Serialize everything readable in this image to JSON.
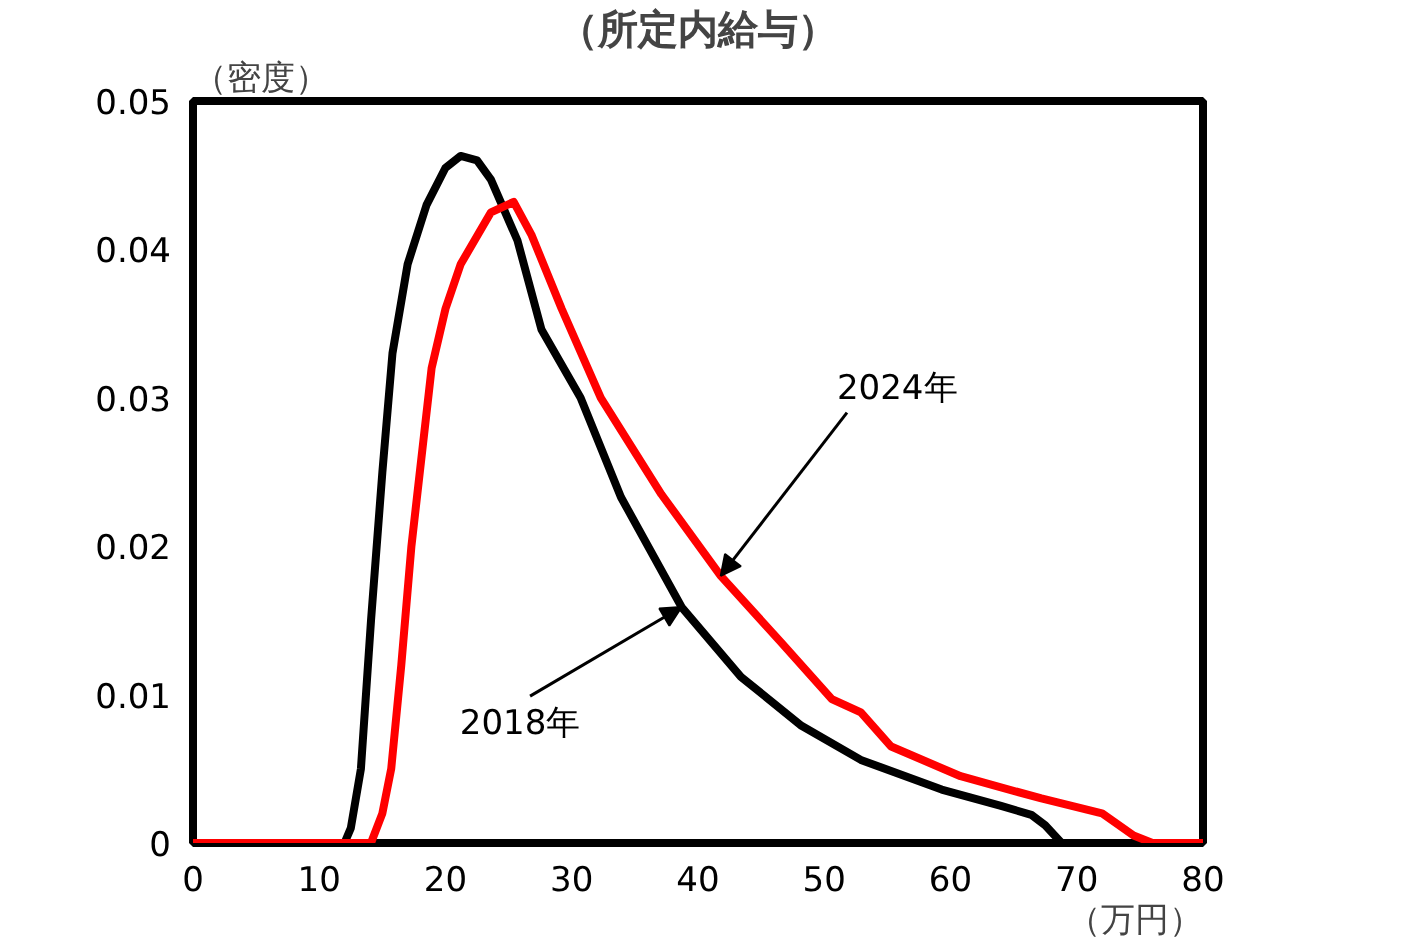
{
  "chart_data": {
    "type": "line",
    "title": "（所定内給与）",
    "ylabel": "（密度）",
    "xlabel": "（万円）",
    "xlim": [
      0,
      80
    ],
    "ylim": [
      0,
      0.05
    ],
    "xticks": [
      0,
      10,
      20,
      30,
      40,
      50,
      60,
      70,
      80
    ],
    "yticks": [
      0,
      {
        "value": 0.01,
        "label": "0.01"
      },
      {
        "value": 0.02,
        "label": "0.02"
      },
      {
        "value": 0.03,
        "label": "0.03"
      },
      {
        "value": 0.04,
        "label": "0.04"
      },
      {
        "value": 0.05,
        "label": "0.05"
      }
    ],
    "grid": false,
    "marker": "none",
    "line_style": "solid",
    "series": [
      {
        "color": "#000000",
        "x": [
          0,
          12,
          12.5,
          13.3,
          14.1,
          15,
          15.8,
          17,
          18.5,
          20,
          21.2,
          22.5,
          23.6,
          25.7,
          27.6,
          30.7,
          33.9,
          38.7,
          43.4,
          48.2,
          52.9,
          59.3,
          64,
          66.4,
          67.5,
          68.8,
          80
        ],
        "values": [
          0,
          0,
          0.001,
          0.005,
          0.015,
          0.025,
          0.033,
          0.039,
          0.043,
          0.0455,
          0.0463,
          0.046,
          0.0447,
          0.0406,
          0.0346,
          0.03,
          0.0233,
          0.0159,
          0.0112,
          0.0079,
          0.0056,
          0.0036,
          0.0025,
          0.0019,
          0.0012,
          0,
          0
        ]
      },
      {
        "color": "#ff0000",
        "x": [
          0,
          14.1,
          15,
          15.7,
          16.5,
          17.3,
          18.9,
          20,
          21.2,
          23.6,
          25.4,
          26.8,
          29.2,
          32.3,
          37.1,
          41.8,
          46.6,
          50.6,
          52.9,
          55.3,
          60.8,
          67.2,
          72,
          74.5,
          76,
          80
        ],
        "values": [
          0,
          0,
          0.002,
          0.005,
          0.012,
          0.02,
          0.032,
          0.036,
          0.039,
          0.0425,
          0.0432,
          0.041,
          0.036,
          0.03,
          0.0235,
          0.018,
          0.0135,
          0.0097,
          0.0088,
          0.0065,
          0.0045,
          0.003,
          0.002,
          0.0005,
          0,
          0
        ]
      }
    ],
    "annotations": [
      {
        "text": "2024年",
        "x": 41.8,
        "y": 0.018
      },
      {
        "text": "2018年",
        "x": 38.7,
        "y": 0.0159
      }
    ]
  }
}
